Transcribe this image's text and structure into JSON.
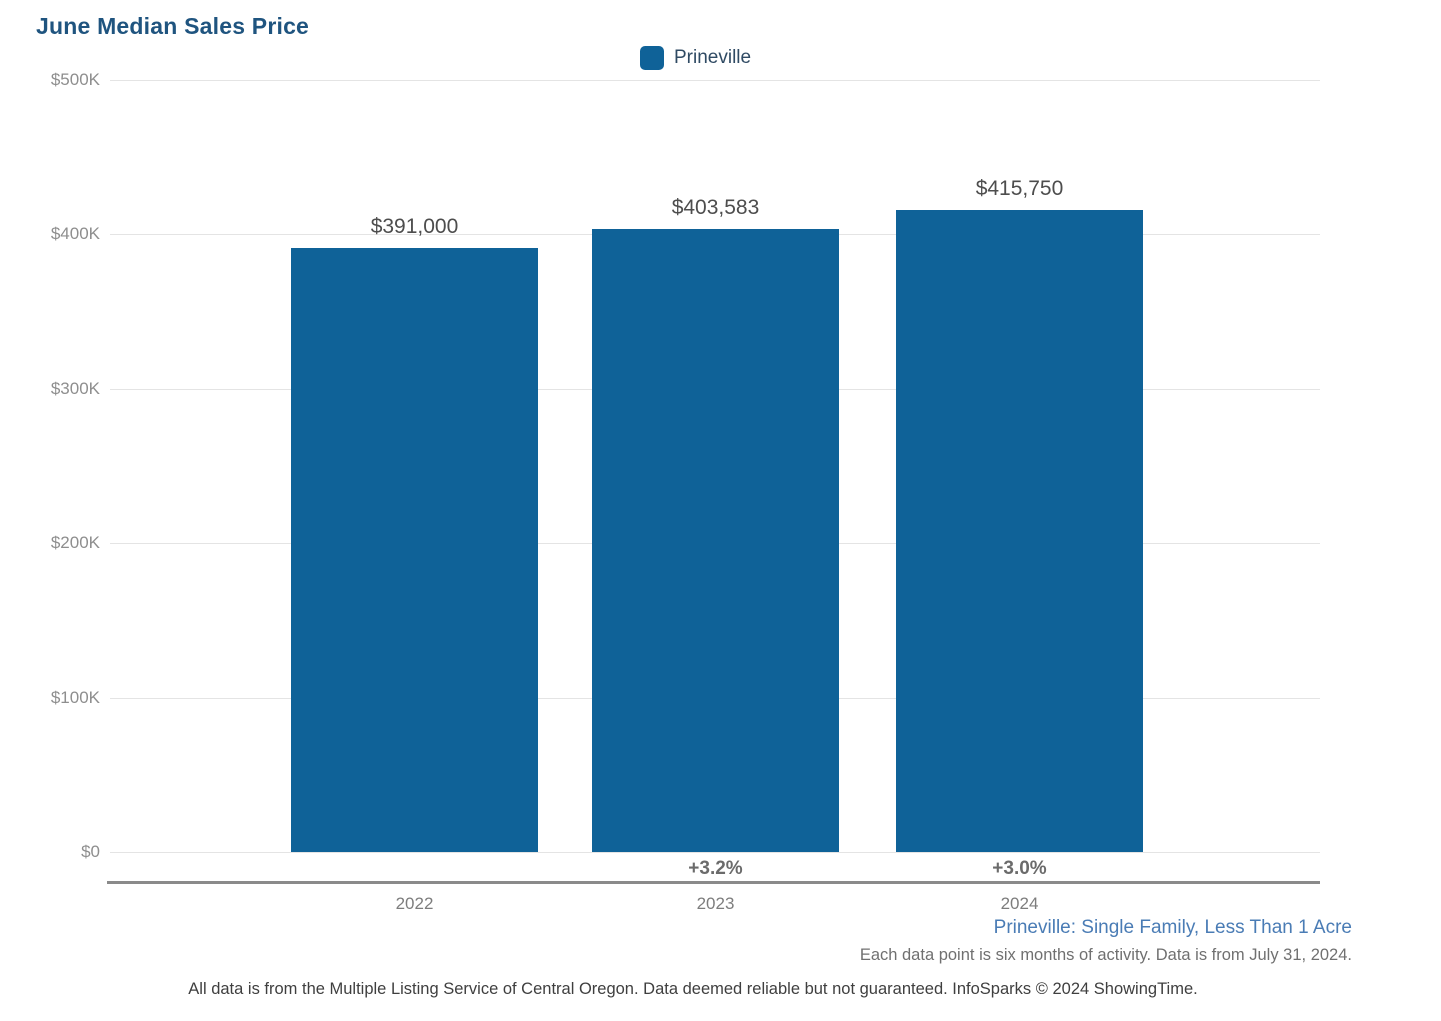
{
  "title": "June Median Sales Price",
  "legend": {
    "label": "Prineville",
    "swatch_color": "#0f6298"
  },
  "chart_data": {
    "type": "bar",
    "title": "June Median Sales Price",
    "categories": [
      "2022",
      "2023",
      "2024"
    ],
    "series": [
      {
        "name": "Prineville",
        "values": [
          391000,
          403583,
          415750
        ]
      }
    ],
    "value_labels": [
      "$391,000",
      "$403,583",
      "$415,750"
    ],
    "pct_change_labels": [
      "",
      "+3.2%",
      "+3.0%"
    ],
    "ylim": [
      0,
      500000
    ],
    "ytick_values": [
      0,
      100000,
      200000,
      300000,
      400000,
      500000
    ],
    "ytick_labels": [
      "$0",
      "$100K",
      "$200K",
      "$300K",
      "$400K",
      "$500K"
    ],
    "bar_color": "#0f6298",
    "grid": "horizontal",
    "legend_position": "top",
    "xlabel": "",
    "ylabel": ""
  },
  "footer": {
    "series_description": "Prineville: Single Family, Less Than 1 Acre",
    "data_note": "Each data point is six months of activity. Data is from July 31, 2024.",
    "disclaimer": "All data is from the Multiple Listing Service of Central Oregon. Data deemed reliable but not guaranteed. InfoSparks © 2024 ShowingTime."
  }
}
